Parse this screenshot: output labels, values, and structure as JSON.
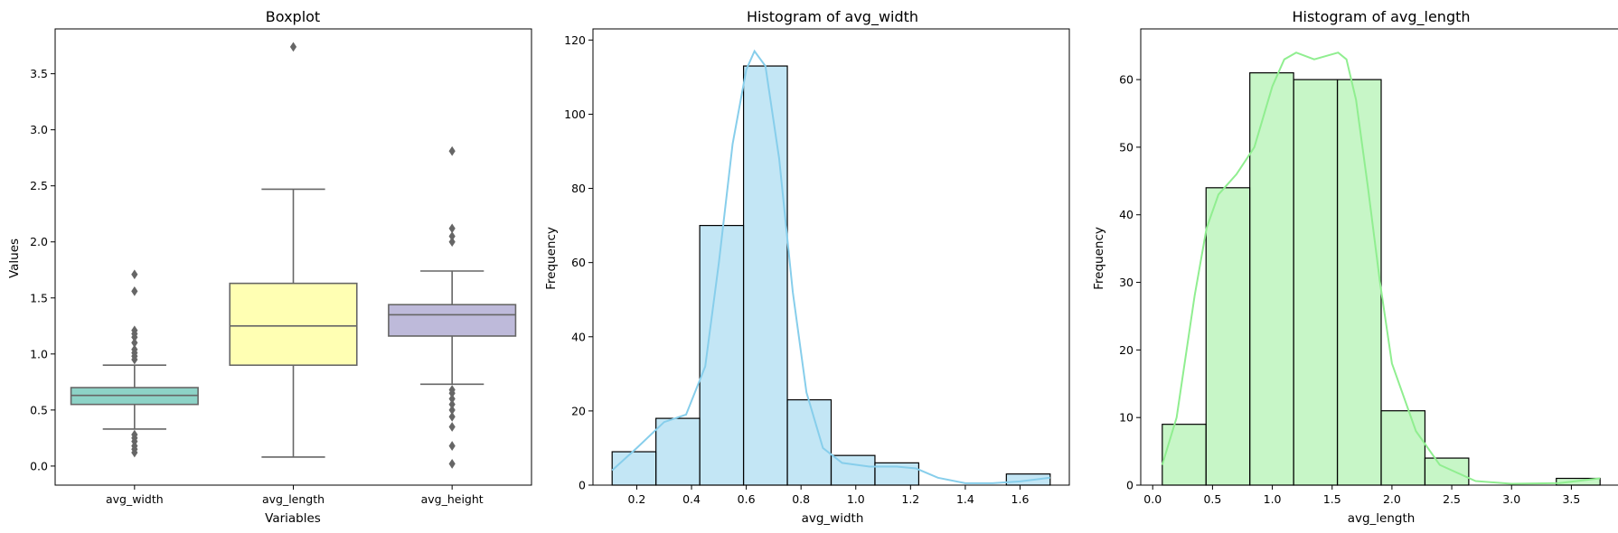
{
  "chart_data": [
    {
      "type": "box",
      "title": "Boxplot",
      "xlabel": "Variables",
      "ylabel": "Values",
      "ylim": [
        -0.17,
        3.9
      ],
      "yticks": [
        "0.0",
        "0.5",
        "1.0",
        "1.5",
        "2.0",
        "2.5",
        "3.0",
        "3.5"
      ],
      "grid": false,
      "boxes": [
        {
          "name": "avg_width",
          "color": "#8dd3c7",
          "q1": 0.55,
          "median": 0.63,
          "q3": 0.7,
          "whisker_low": 0.33,
          "whisker_high": 0.9,
          "outliers": [
            0.12,
            0.15,
            0.18,
            0.22,
            0.25,
            0.28,
            0.95,
            0.98,
            1.01,
            1.04,
            1.1,
            1.15,
            1.18,
            1.21,
            1.56,
            1.71
          ]
        },
        {
          "name": "avg_length",
          "color": "#ffffb3",
          "q1": 0.9,
          "median": 1.25,
          "q3": 1.63,
          "whisker_low": 0.08,
          "whisker_high": 2.47,
          "outliers": [
            3.74
          ]
        },
        {
          "name": "avg_height",
          "color": "#bebada",
          "q1": 1.16,
          "median": 1.35,
          "q3": 1.44,
          "whisker_low": 0.73,
          "whisker_high": 1.74,
          "outliers": [
            0.02,
            0.18,
            0.35,
            0.44,
            0.5,
            0.55,
            0.6,
            0.65,
            0.68,
            2.0,
            2.05,
            2.12,
            2.81
          ]
        }
      ]
    },
    {
      "type": "histogram",
      "title": "Histogram of avg_width",
      "xlabel": "avg_width",
      "ylabel": "Frequency",
      "xlim": [
        0.04,
        1.78
      ],
      "ylim": [
        0,
        123
      ],
      "xticks": [
        0.2,
        0.4,
        0.6,
        0.8,
        1.0,
        1.2,
        1.4,
        1.6
      ],
      "yticks": [
        0,
        20,
        40,
        60,
        80,
        100,
        120
      ],
      "color": "#87ceeb",
      "bin_start": 0.11,
      "bin_width": 0.16,
      "counts": [
        9,
        18,
        70,
        113,
        23,
        8,
        6,
        0,
        0,
        3
      ],
      "kde": [
        [
          0.11,
          4
        ],
        [
          0.2,
          10
        ],
        [
          0.3,
          17
        ],
        [
          0.38,
          19
        ],
        [
          0.45,
          32
        ],
        [
          0.5,
          60
        ],
        [
          0.55,
          92
        ],
        [
          0.6,
          112
        ],
        [
          0.63,
          117
        ],
        [
          0.67,
          113
        ],
        [
          0.72,
          88
        ],
        [
          0.77,
          52
        ],
        [
          0.82,
          25
        ],
        [
          0.88,
          10
        ],
        [
          0.95,
          6
        ],
        [
          1.05,
          5
        ],
        [
          1.15,
          5
        ],
        [
          1.22,
          4.5
        ],
        [
          1.3,
          2
        ],
        [
          1.4,
          0.5
        ],
        [
          1.5,
          0.5
        ],
        [
          1.6,
          1
        ],
        [
          1.71,
          2
        ]
      ]
    },
    {
      "type": "histogram",
      "title": "Histogram of avg_length",
      "xlabel": "avg_length",
      "ylabel": "Frequency",
      "xlim": [
        -0.1,
        3.92
      ],
      "ylim": [
        0,
        67.5
      ],
      "xticks": [
        0.0,
        0.5,
        1.0,
        1.5,
        2.0,
        2.5,
        3.0,
        3.5
      ],
      "yticks": [
        0,
        10,
        20,
        30,
        40,
        50,
        60
      ],
      "color": "#90ee90",
      "bin_start": 0.08,
      "bin_width": 0.366,
      "counts": [
        9,
        44,
        61,
        60,
        60,
        11,
        4,
        0,
        0,
        1
      ],
      "kde": [
        [
          0.08,
          3
        ],
        [
          0.2,
          10
        ],
        [
          0.35,
          28
        ],
        [
          0.45,
          38
        ],
        [
          0.55,
          43
        ],
        [
          0.7,
          46
        ],
        [
          0.85,
          50
        ],
        [
          1.0,
          59
        ],
        [
          1.1,
          63
        ],
        [
          1.2,
          64
        ],
        [
          1.35,
          63
        ],
        [
          1.55,
          64
        ],
        [
          1.62,
          63
        ],
        [
          1.7,
          57
        ],
        [
          1.8,
          44
        ],
        [
          1.9,
          30
        ],
        [
          2.0,
          18
        ],
        [
          2.2,
          8
        ],
        [
          2.4,
          3
        ],
        [
          2.7,
          0.6
        ],
        [
          3.0,
          0.2
        ],
        [
          3.4,
          0.3
        ],
        [
          3.74,
          1
        ]
      ]
    }
  ]
}
